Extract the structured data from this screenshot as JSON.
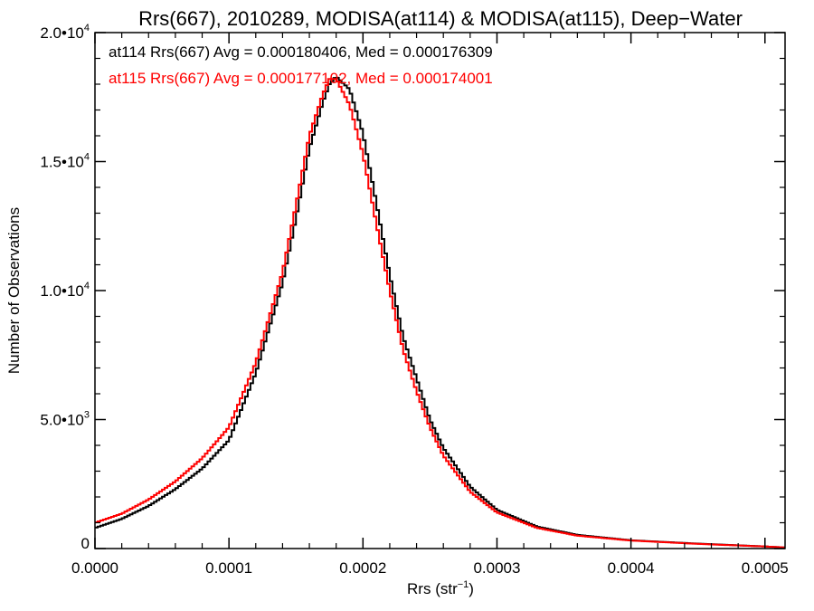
{
  "chart_data": {
    "type": "line",
    "step": true,
    "title": "Rrs(667), 2010289, MODISA(at114) & MODISA(at115), Deep−Water",
    "xlabel_main": "Rrs (str",
    "xlabel_sup": "−1",
    "xlabel_close": ")",
    "ylabel": "Number of Observations",
    "xlim": [
      0,
      0.000515
    ],
    "ylim": [
      0,
      20000
    ],
    "grid": false,
    "x_ticks": [
      {
        "value": 0.0,
        "label": "0.0000"
      },
      {
        "value": 0.0001,
        "label": "0.0001"
      },
      {
        "value": 0.0002,
        "label": "0.0002"
      },
      {
        "value": 0.0003,
        "label": "0.0003"
      },
      {
        "value": 0.0004,
        "label": "0.0004"
      },
      {
        "value": 0.0005,
        "label": "0.0005"
      }
    ],
    "y_ticks": [
      {
        "value": 0,
        "mant": "0",
        "exp": ""
      },
      {
        "value": 5000,
        "mant": "5.0•10",
        "exp": "3"
      },
      {
        "value": 10000,
        "mant": "1.0•10",
        "exp": "4"
      },
      {
        "value": 15000,
        "mant": "1.5•10",
        "exp": "4"
      },
      {
        "value": 20000,
        "mant": "2.0•10",
        "exp": "4"
      }
    ],
    "annotations": [
      "at114 Rrs(667) Avg = 0.000180406, Med = 0.000176309",
      "at115 Rrs(667) Avg = 0.000177102, Med = 0.000174001"
    ],
    "series": [
      {
        "color": "#000000",
        "x": [
          0.0,
          2e-05,
          4e-05,
          6e-05,
          8e-05,
          0.0001,
          0.00012,
          0.00014,
          0.00015,
          0.00016,
          0.00017,
          0.000175,
          0.00018,
          0.00019,
          0.0002,
          0.00021,
          0.00022,
          0.00023,
          0.00024,
          0.00025,
          0.00026,
          0.00028,
          0.0003,
          0.00033,
          0.00036,
          0.0004,
          0.00045,
          0.0005,
          0.000515
        ],
        "y": [
          800,
          1150,
          1650,
          2300,
          3100,
          4200,
          6800,
          10300,
          12800,
          15500,
          17300,
          18000,
          18300,
          17800,
          16100,
          13400,
          10600,
          8200,
          6600,
          5000,
          3900,
          2400,
          1500,
          850,
          530,
          320,
          190,
          80,
          40
        ]
      },
      {
        "color": "#ff0000",
        "x": [
          0.0,
          2e-05,
          4e-05,
          6e-05,
          8e-05,
          0.0001,
          0.00012,
          0.00014,
          0.00015,
          0.00016,
          0.00017,
          0.000175,
          0.00018,
          0.00019,
          0.0002,
          0.00021,
          0.00022,
          0.00023,
          0.00024,
          0.00025,
          0.00026,
          0.00028,
          0.0003,
          0.00033,
          0.00036,
          0.0004,
          0.00045,
          0.0005,
          0.000515
        ],
        "y": [
          1000,
          1350,
          1900,
          2600,
          3500,
          4700,
          7200,
          10700,
          13300,
          16000,
          17600,
          18200,
          18200,
          17200,
          15300,
          12600,
          10000,
          7700,
          6100,
          4700,
          3600,
          2200,
          1400,
          800,
          500,
          310,
          180,
          80,
          40
        ]
      }
    ]
  }
}
